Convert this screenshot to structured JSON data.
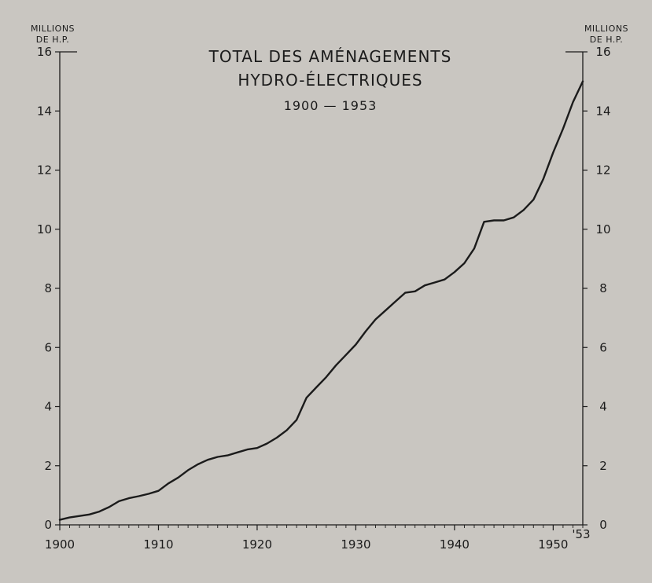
{
  "chart_data": {
    "type": "line",
    "title_lines": [
      "TOTAL DES AMÉNAGEMENTS",
      "HYDRO-ÉLECTRIQUES"
    ],
    "subtitle": "1900 — 1953",
    "y_unit_left": [
      "MILLIONS",
      "DE H.P."
    ],
    "y_unit_right": [
      "MILLIONS",
      "DE H.P."
    ],
    "xlim": [
      1900,
      1953
    ],
    "ylim": [
      0,
      16
    ],
    "x_ticks": [
      1900,
      1910,
      1920,
      1930,
      1940,
      1950
    ],
    "x_tick_labels": [
      "1900",
      "1910",
      "1920",
      "1930",
      "1940",
      "1950"
    ],
    "x_end_label": "'53",
    "y_ticks": [
      0,
      2,
      4,
      6,
      8,
      10,
      12,
      14,
      16
    ],
    "y_tick_labels": [
      "0",
      "2",
      "4",
      "6",
      "8",
      "10",
      "12",
      "14",
      "16"
    ],
    "grid": false,
    "series": [
      {
        "x": [
          1900,
          1901,
          1902,
          1903,
          1904,
          1905,
          1906,
          1907,
          1908,
          1909,
          1910,
          1911,
          1912,
          1913,
          1914,
          1915,
          1916,
          1917,
          1918,
          1919,
          1920,
          1921,
          1922,
          1923,
          1924,
          1925,
          1926,
          1927,
          1928,
          1929,
          1930,
          1931,
          1932,
          1933,
          1934,
          1935,
          1936,
          1937,
          1938,
          1939,
          1940,
          1941,
          1942,
          1943,
          1944,
          1945,
          1946,
          1947,
          1948,
          1949,
          1950,
          1951,
          1952,
          1953
        ],
        "y": [
          0.17,
          0.25,
          0.3,
          0.35,
          0.45,
          0.6,
          0.8,
          0.9,
          0.97,
          1.05,
          1.15,
          1.4,
          1.6,
          1.85,
          2.05,
          2.2,
          2.3,
          2.35,
          2.45,
          2.55,
          2.6,
          2.75,
          2.95,
          3.2,
          3.55,
          4.3,
          4.65,
          5.0,
          5.4,
          5.75,
          6.1,
          6.55,
          6.95,
          7.25,
          7.55,
          7.85,
          7.9,
          8.1,
          8.2,
          8.3,
          8.55,
          8.85,
          9.35,
          10.25,
          10.3,
          10.3,
          10.4,
          10.65,
          11.0,
          11.7,
          12.6,
          13.4,
          14.3,
          15.0
        ]
      }
    ]
  }
}
